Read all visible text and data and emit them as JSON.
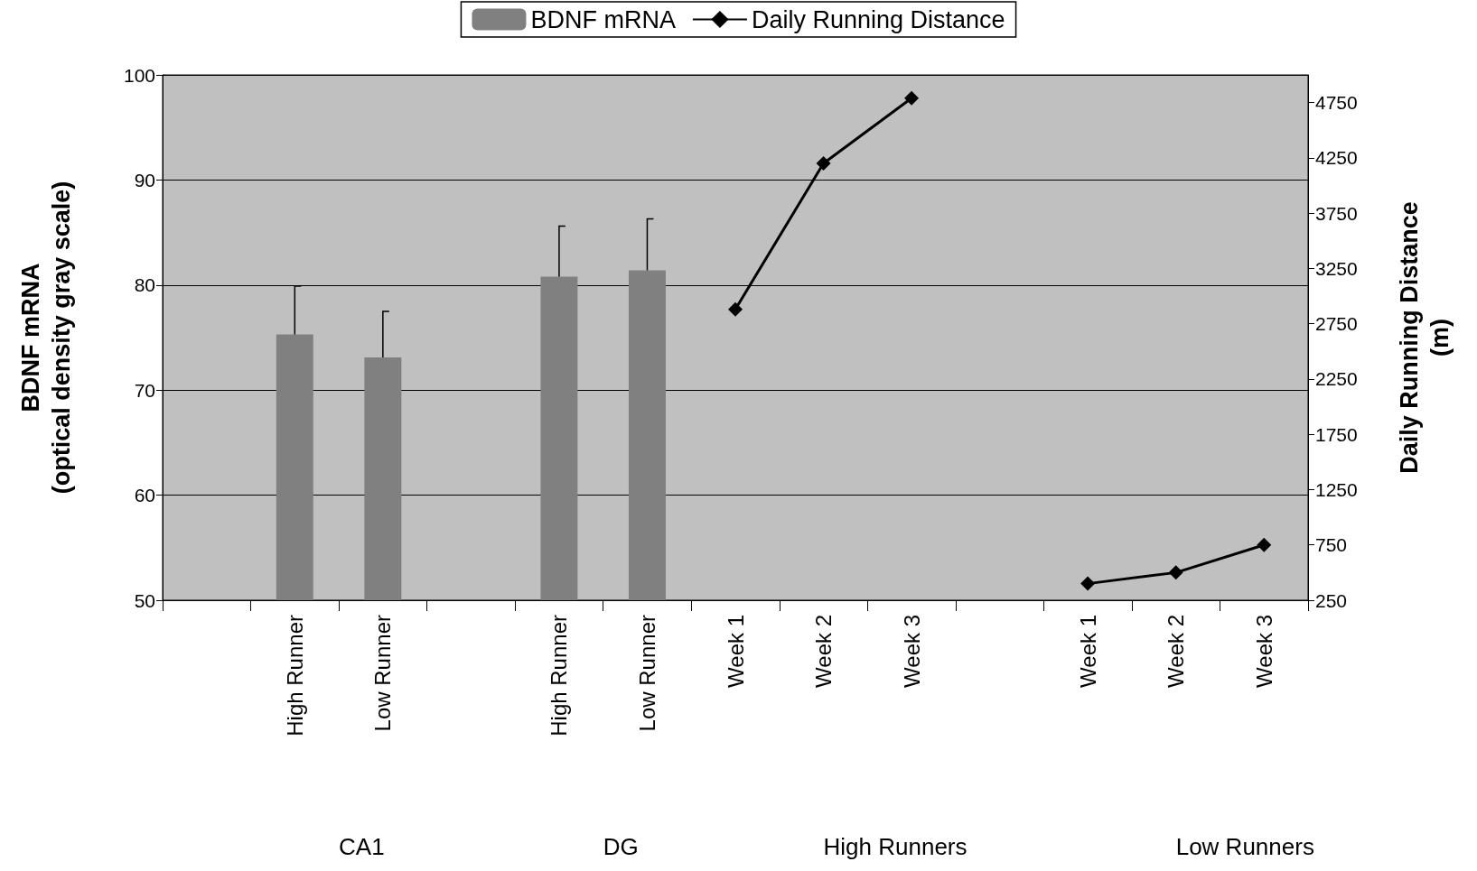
{
  "chart_data": {
    "type": "bar",
    "categories": [
      null,
      "High Runner",
      "Low Runner",
      null,
      "High Runner",
      "Low Runner",
      "Week 1",
      "Week 2",
      "Week 3",
      null,
      "Week 1",
      "Week 2",
      "Week 3"
    ],
    "series": [
      {
        "name": "BDNF mRNA",
        "color": "#808080",
        "values": [
          null,
          75.3,
          73.1,
          null,
          80.8,
          81.4,
          null,
          null,
          null,
          null,
          null,
          null,
          null
        ],
        "errors": [
          null,
          [
            75.3,
            79.9
          ],
          [
            73.1,
            77.5
          ],
          null,
          [
            80.8,
            85.6
          ],
          [
            81.4,
            86.3
          ],
          null,
          null,
          null,
          null,
          null,
          null,
          null
        ]
      },
      {
        "name": "Daily Running Distance",
        "type": "line",
        "axis": "y2",
        "color": "#000000",
        "marker": "diamond",
        "line_style": "solid",
        "values": [
          null,
          null,
          null,
          null,
          null,
          null,
          2880,
          4200,
          4790,
          null,
          400,
          500,
          750
        ]
      }
    ],
    "ylabel": "BDNF mRNA\n(optical density gray scale)",
    "y2label": "Daily Running Distance\n(m)",
    "ylim": [
      50,
      100
    ],
    "yticks": [
      50,
      60,
      70,
      80,
      90,
      100
    ],
    "y2lim": [
      250,
      5000
    ],
    "y2ticks": [
      250,
      750,
      1250,
      1750,
      2250,
      2750,
      3250,
      3750,
      4250,
      4750
    ],
    "annotations": [
      "CA1",
      "DG",
      "High Runners",
      "Low Runners"
    ],
    "grid": "y",
    "legend": "top"
  }
}
